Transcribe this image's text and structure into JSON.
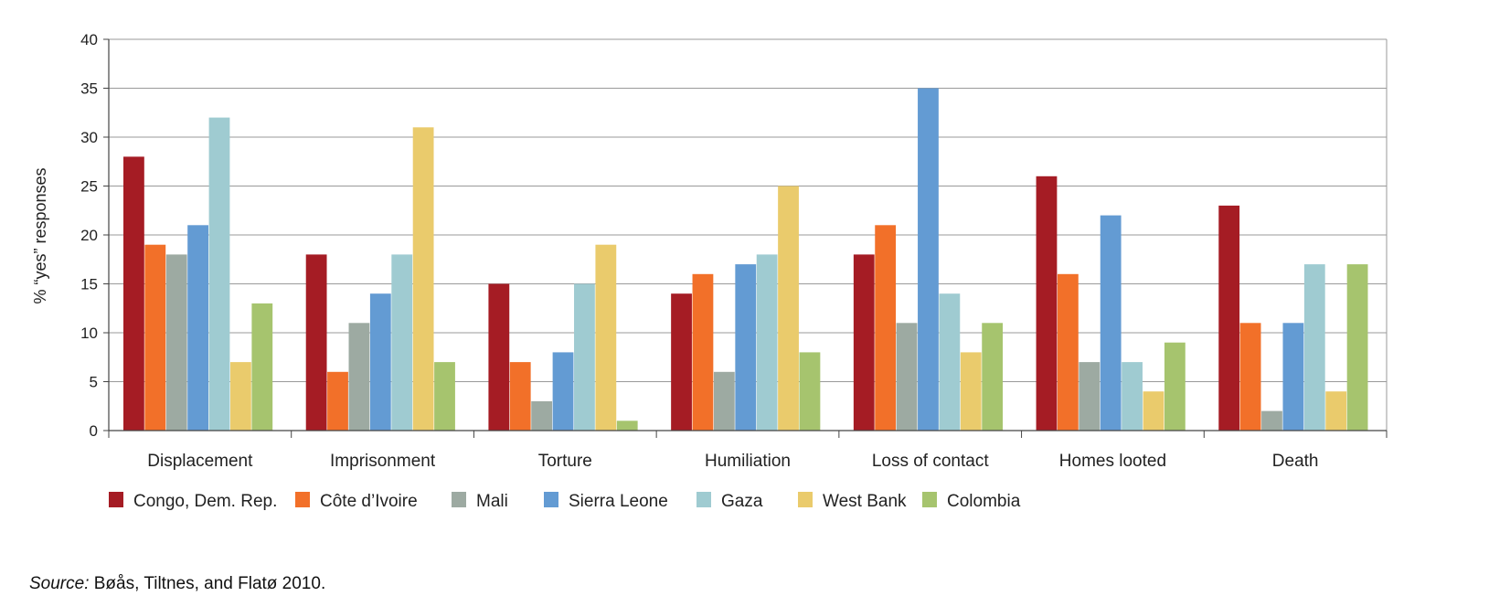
{
  "chart_data": {
    "type": "bar",
    "title": "",
    "xlabel": "",
    "ylabel": "% “yes” responses",
    "ylim": [
      0,
      40
    ],
    "yticks": [
      0,
      5,
      10,
      15,
      20,
      25,
      30,
      35,
      40
    ],
    "grid": true,
    "legend_position": "bottom",
    "categories": [
      "Displacement",
      "Imprisonment",
      "Torture",
      "Humiliation",
      "Loss of contact",
      "Homes looted",
      "Death"
    ],
    "series": [
      {
        "name": "Congo, Dem. Rep.",
        "color": "#A51C24",
        "values": [
          28,
          18,
          15,
          14,
          18,
          26,
          23
        ]
      },
      {
        "name": "Côte d’Ivoire",
        "color": "#F27029",
        "values": [
          19,
          6,
          7,
          16,
          21,
          16,
          11
        ]
      },
      {
        "name": "Mali",
        "color": "#9DAAA2",
        "values": [
          18,
          11,
          3,
          6,
          11,
          7,
          2
        ]
      },
      {
        "name": "Sierra Leone",
        "color": "#639BD3",
        "values": [
          21,
          14,
          8,
          17,
          35,
          22,
          11
        ]
      },
      {
        "name": "Gaza",
        "color": "#9FCBD1",
        "values": [
          32,
          18,
          15,
          18,
          14,
          7,
          17
        ]
      },
      {
        "name": "West Bank",
        "color": "#EACB6C",
        "values": [
          7,
          31,
          19,
          25,
          8,
          4,
          4
        ]
      },
      {
        "name": "Colombia",
        "color": "#A6C46E",
        "values": [
          13,
          7,
          1,
          8,
          11,
          9,
          17
        ]
      }
    ]
  },
  "source": {
    "label": "Source:",
    "text": " Bøås, Tiltnes, and Flatø 2010."
  }
}
